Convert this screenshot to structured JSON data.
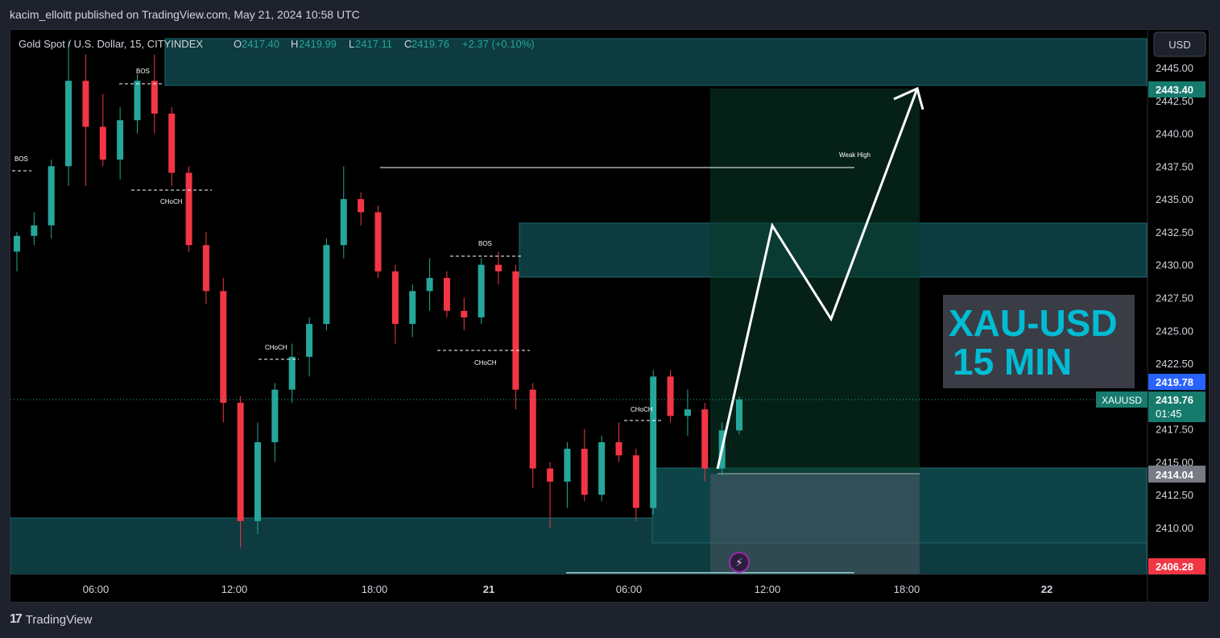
{
  "header": {
    "publish_line": "kacim_elloitt published on TradingView.com, May 21, 2024 10:58 UTC"
  },
  "footer": {
    "brand": "TradingView"
  },
  "legend": {
    "symbol": "Gold Spot / U.S. Dollar, 15, CITYINDEX",
    "o_label": "O",
    "o_value": "2417.40",
    "h_label": "H",
    "h_value": "2419.99",
    "l_label": "L",
    "l_value": "2417.11",
    "c_label": "C",
    "c_value": "2419.76",
    "change": "+2.37 (+0.10%)"
  },
  "currency_button": "USD",
  "title_box": {
    "line1": "XAU-USD",
    "line2": "15 MIN"
  },
  "annotations": {
    "bos_1": "BOS",
    "bos_2": "BOS",
    "bos_3": "BOS",
    "choch_1": "CHoCH",
    "choch_2": "CHoCH",
    "choch_3": "CHoCH",
    "choch_4": "CHoCH",
    "weak_high": "Weak High"
  },
  "price_labels": {
    "top_zone": "2443.40",
    "alert": "2419.78",
    "symbol_tag": "XAUUSD",
    "last_price": "2419.76",
    "countdown": "01:45",
    "entry": "2414.04",
    "stop": "2406.28"
  },
  "colors": {
    "up": "#26a69a",
    "down": "#f23645",
    "zone": "#0d3b3f",
    "zone_border": "#1a5c62",
    "title_bg": "#3a3d46",
    "title_text": "#00bcd4",
    "alert": "#2962ff",
    "stop": "#f23645"
  },
  "chart_data": {
    "type": "candlestick",
    "title": "Gold Spot / U.S. Dollar, 15, CITYINDEX",
    "xlabel": "",
    "ylabel": "",
    "ylim": [
      2406.28,
      2447.5
    ],
    "y_ticks": [
      "2445.00",
      "2442.50",
      "2440.00",
      "2437.50",
      "2435.00",
      "2432.50",
      "2430.00",
      "2427.50",
      "2425.00",
      "2422.50",
      "2417.50",
      "2415.00",
      "2412.50",
      "2410.00"
    ],
    "x_ticks": [
      "06:00",
      "12:00",
      "18:00",
      "21",
      "06:00",
      "12:00",
      "18:00",
      "22"
    ],
    "zones": [
      {
        "name": "supply zone top",
        "from": 2443.4,
        "to": 2447.0
      },
      {
        "name": "supply zone mid",
        "from": 2429.1,
        "to": 2433.2
      },
      {
        "name": "demand zone",
        "from": 2408.9,
        "to": 2414.6
      },
      {
        "name": "demand zone low",
        "from": 2406.28,
        "to": 2410.7
      }
    ],
    "position": {
      "entry": 2414.04,
      "target": 2443.1,
      "stop": 2406.28
    },
    "projection": [
      2414.7,
      2433.0,
      2426.0,
      2443.4
    ],
    "weak_high": 2437.4,
    "last_price": 2419.76,
    "candles_sampled": [
      [
        2431.0,
        2432.5,
        2429.5,
        2432.2
      ],
      [
        2432.2,
        2434.0,
        2431.5,
        2433.0
      ],
      [
        2433.0,
        2438.0,
        2432.0,
        2437.5
      ],
      [
        2437.5,
        2447.0,
        2436.0,
        2444.0
      ],
      [
        2444.0,
        2446.0,
        2436.0,
        2440.5
      ],
      [
        2440.5,
        2443.0,
        2437.5,
        2438.0
      ],
      [
        2438.0,
        2442.0,
        2436.5,
        2441.0
      ],
      [
        2441.0,
        2444.5,
        2440.0,
        2444.0
      ],
      [
        2444.0,
        2446.0,
        2440.0,
        2441.5
      ],
      [
        2441.5,
        2442.0,
        2436.0,
        2437.0
      ],
      [
        2437.0,
        2437.5,
        2431.0,
        2431.5
      ],
      [
        2431.5,
        2432.5,
        2427.0,
        2428.0
      ],
      [
        2428.0,
        2429.0,
        2418.0,
        2419.5
      ],
      [
        2419.5,
        2420.0,
        2408.5,
        2410.5
      ],
      [
        2410.5,
        2418.0,
        2409.5,
        2416.5
      ],
      [
        2416.5,
        2421.0,
        2415.0,
        2420.5
      ],
      [
        2420.5,
        2424.0,
        2419.5,
        2423.0
      ],
      [
        2423.0,
        2426.0,
        2421.5,
        2425.5
      ],
      [
        2425.5,
        2432.0,
        2425.0,
        2431.5
      ],
      [
        2431.5,
        2437.5,
        2430.5,
        2435.0
      ],
      [
        2435.0,
        2435.5,
        2433.0,
        2434.0
      ],
      [
        2434.0,
        2434.5,
        2429.0,
        2429.5
      ],
      [
        2429.5,
        2430.0,
        2424.0,
        2425.5
      ],
      [
        2425.5,
        2428.5,
        2424.5,
        2428.0
      ],
      [
        2428.0,
        2430.5,
        2426.5,
        2429.0
      ],
      [
        2429.0,
        2429.5,
        2426.0,
        2426.5
      ],
      [
        2426.5,
        2427.5,
        2425.0,
        2426.0
      ],
      [
        2426.0,
        2430.5,
        2425.5,
        2430.0
      ],
      [
        2430.0,
        2431.0,
        2428.5,
        2429.5
      ],
      [
        2429.5,
        2430.0,
        2419.0,
        2420.5
      ],
      [
        2420.5,
        2421.0,
        2413.0,
        2414.5
      ],
      [
        2414.5,
        2415.0,
        2410.0,
        2413.5
      ],
      [
        2413.5,
        2416.5,
        2411.5,
        2416.0
      ],
      [
        2416.0,
        2417.5,
        2412.0,
        2412.5
      ],
      [
        2412.5,
        2417.0,
        2412.0,
        2416.5
      ],
      [
        2416.5,
        2418.0,
        2415.0,
        2415.5
      ],
      [
        2415.5,
        2416.0,
        2410.5,
        2411.5
      ],
      [
        2411.5,
        2422.0,
        2411.0,
        2421.5
      ],
      [
        2421.5,
        2422.0,
        2418.0,
        2418.5
      ],
      [
        2418.5,
        2420.5,
        2417.0,
        2419.0
      ],
      [
        2419.0,
        2419.5,
        2413.5,
        2414.5
      ],
      [
        2414.5,
        2418.0,
        2414.0,
        2417.4
      ],
      [
        2417.4,
        2419.99,
        2417.11,
        2419.76
      ]
    ]
  }
}
